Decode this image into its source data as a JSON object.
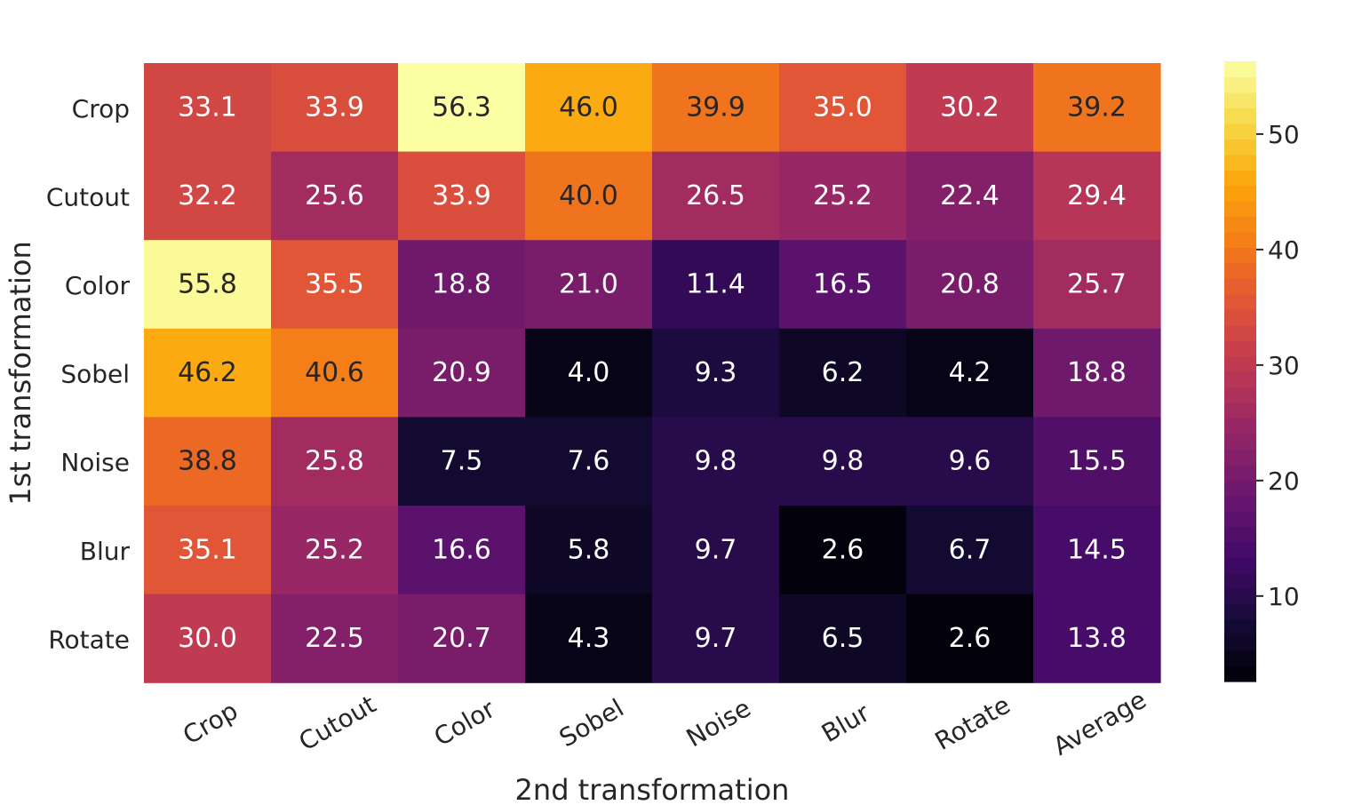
{
  "chart_data": {
    "type": "heatmap",
    "title": "",
    "xlabel": "2nd transformation",
    "ylabel": "1st transformation",
    "x_categories": [
      "Crop",
      "Cutout",
      "Color",
      "Sobel",
      "Noise",
      "Blur",
      "Rotate",
      "Average"
    ],
    "y_categories": [
      "Crop",
      "Cutout",
      "Color",
      "Sobel",
      "Noise",
      "Blur",
      "Rotate"
    ],
    "values": [
      [
        33.1,
        33.9,
        56.3,
        46.0,
        39.9,
        35.0,
        30.2,
        39.2
      ],
      [
        32.2,
        25.6,
        33.9,
        40.0,
        26.5,
        25.2,
        22.4,
        29.4
      ],
      [
        55.8,
        35.5,
        18.8,
        21.0,
        11.4,
        16.5,
        20.8,
        25.7
      ],
      [
        46.2,
        40.6,
        20.9,
        4.0,
        9.3,
        6.2,
        4.2,
        18.8
      ],
      [
        38.8,
        25.8,
        7.5,
        7.6,
        9.8,
        9.8,
        9.6,
        15.5
      ],
      [
        35.1,
        25.2,
        16.6,
        5.8,
        9.7,
        2.6,
        6.7,
        14.5
      ],
      [
        30.0,
        22.5,
        20.7,
        4.3,
        9.7,
        6.5,
        2.6,
        13.8
      ]
    ],
    "annotations": "values shown in each cell with one decimal",
    "colormap": "inferno",
    "colorbar": {
      "range": [
        2.6,
        56.3
      ],
      "ticks": [
        10,
        20,
        30,
        40,
        50
      ],
      "levels": 40
    }
  }
}
